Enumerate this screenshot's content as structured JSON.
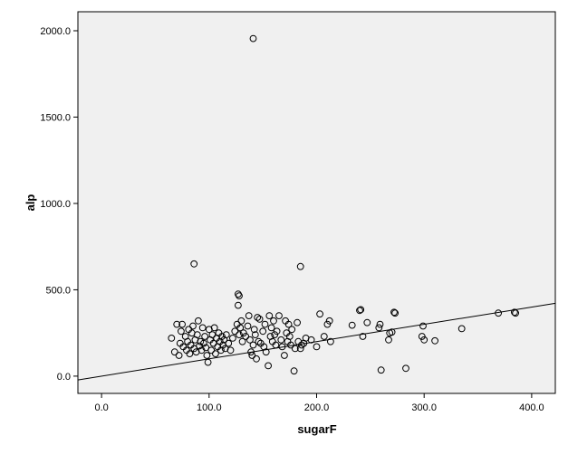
{
  "chart_data": {
    "type": "scatter",
    "title": "",
    "xlabel": "sugarF",
    "ylabel": "alp",
    "xlim": [
      -22,
      422
    ],
    "ylim": [
      -100,
      2110
    ],
    "x_ticks": [
      0,
      100,
      200,
      300,
      400
    ],
    "x_tick_labels": [
      "0.0",
      "100.0",
      "200.0",
      "300.0",
      "400.0"
    ],
    "y_ticks": [
      0,
      500,
      1000,
      1500,
      2000
    ],
    "y_tick_labels": [
      "0.0",
      "500.0",
      "1000.0",
      "1500.0",
      "2000.0"
    ],
    "grid": false,
    "reference_line": "y = x",
    "colors": {
      "plot_background": "#f0f0f0",
      "marker_stroke": "#000000",
      "line": "#000000"
    },
    "points": [
      [
        141,
        1955
      ],
      [
        86,
        650
      ],
      [
        185,
        635
      ],
      [
        127,
        475
      ],
      [
        128,
        465
      ],
      [
        127,
        410
      ],
      [
        65,
        220
      ],
      [
        68,
        140
      ],
      [
        70,
        300
      ],
      [
        72,
        120
      ],
      [
        73,
        190
      ],
      [
        74,
        260
      ],
      [
        75,
        300
      ],
      [
        76,
        170
      ],
      [
        78,
        230
      ],
      [
        79,
        150
      ],
      [
        80,
        200
      ],
      [
        81,
        270
      ],
      [
        82,
        130
      ],
      [
        83,
        180
      ],
      [
        84,
        250
      ],
      [
        85,
        290
      ],
      [
        86,
        160
      ],
      [
        87,
        210
      ],
      [
        88,
        140
      ],
      [
        89,
        240
      ],
      [
        90,
        320
      ],
      [
        91,
        175
      ],
      [
        92,
        200
      ],
      [
        93,
        150
      ],
      [
        94,
        280
      ],
      [
        95,
        190
      ],
      [
        96,
        230
      ],
      [
        97,
        165
      ],
      [
        98,
        120
      ],
      [
        99,
        80
      ],
      [
        100,
        270
      ],
      [
        101,
        210
      ],
      [
        102,
        150
      ],
      [
        103,
        240
      ],
      [
        104,
        190
      ],
      [
        105,
        280
      ],
      [
        106,
        130
      ],
      [
        107,
        220
      ],
      [
        108,
        170
      ],
      [
        109,
        250
      ],
      [
        110,
        200
      ],
      [
        111,
        150
      ],
      [
        112,
        230
      ],
      [
        113,
        180
      ],
      [
        114,
        210
      ],
      [
        115,
        160
      ],
      [
        116,
        240
      ],
      [
        118,
        190
      ],
      [
        120,
        150
      ],
      [
        122,
        220
      ],
      [
        124,
        260
      ],
      [
        126,
        300
      ],
      [
        128,
        240
      ],
      [
        129,
        280
      ],
      [
        130,
        320
      ],
      [
        131,
        200
      ],
      [
        132,
        250
      ],
      [
        134,
        230
      ],
      [
        136,
        290
      ],
      [
        137,
        350
      ],
      [
        138,
        210
      ],
      [
        139,
        140
      ],
      [
        140,
        120
      ],
      [
        141,
        180
      ],
      [
        142,
        270
      ],
      [
        143,
        240
      ],
      [
        144,
        100
      ],
      [
        145,
        340
      ],
      [
        146,
        200
      ],
      [
        147,
        330
      ],
      [
        148,
        190
      ],
      [
        150,
        260
      ],
      [
        151,
        170
      ],
      [
        152,
        300
      ],
      [
        153,
        140
      ],
      [
        155,
        60
      ],
      [
        156,
        350
      ],
      [
        157,
        230
      ],
      [
        158,
        280
      ],
      [
        159,
        200
      ],
      [
        160,
        320
      ],
      [
        161,
        240
      ],
      [
        162,
        180
      ],
      [
        163,
        260
      ],
      [
        165,
        350
      ],
      [
        167,
        210
      ],
      [
        168,
        170
      ],
      [
        170,
        120
      ],
      [
        171,
        320
      ],
      [
        172,
        250
      ],
      [
        173,
        200
      ],
      [
        174,
        300
      ],
      [
        175,
        230
      ],
      [
        176,
        180
      ],
      [
        177,
        270
      ],
      [
        179,
        30
      ],
      [
        180,
        160
      ],
      [
        182,
        310
      ],
      [
        183,
        200
      ],
      [
        185,
        160
      ],
      [
        186,
        180
      ],
      [
        188,
        190
      ],
      [
        190,
        220
      ],
      [
        195,
        210
      ],
      [
        200,
        170
      ],
      [
        203,
        360
      ],
      [
        207,
        230
      ],
      [
        210,
        300
      ],
      [
        212,
        320
      ],
      [
        213,
        200
      ],
      [
        233,
        295
      ],
      [
        240,
        380
      ],
      [
        241,
        385
      ],
      [
        243,
        230
      ],
      [
        247,
        310
      ],
      [
        258,
        280
      ],
      [
        259,
        300
      ],
      [
        260,
        35
      ],
      [
        267,
        210
      ],
      [
        268,
        250
      ],
      [
        270,
        255
      ],
      [
        272,
        370
      ],
      [
        273,
        365
      ],
      [
        283,
        45
      ],
      [
        298,
        230
      ],
      [
        299,
        290
      ],
      [
        300,
        210
      ],
      [
        310,
        205
      ],
      [
        335,
        275
      ],
      [
        369,
        365
      ],
      [
        384,
        370
      ],
      [
        385,
        365
      ]
    ]
  }
}
